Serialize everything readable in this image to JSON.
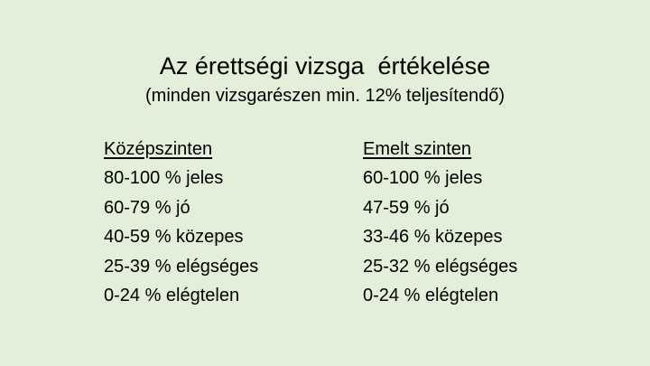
{
  "title": "Az érettségi vizsga  értékelése",
  "subtitle": "(minden vizsgarészen min. 12% teljesítendő)",
  "columns": [
    {
      "heading": "Középszinten",
      "grades": [
        "80-100 % jeles",
        "60-79 % jó",
        "40-59 % közepes",
        "25-39 % elégséges",
        "0-24 % elégtelen"
      ]
    },
    {
      "heading": "Emelt szinten",
      "grades": [
        "60-100 % jeles",
        "47-59 % jó",
        "33-46 % közepes",
        "25-32 % elégséges",
        "0-24 % elégtelen"
      ]
    }
  ],
  "colors": {
    "background": "#e2efd9",
    "text": "#000000"
  }
}
